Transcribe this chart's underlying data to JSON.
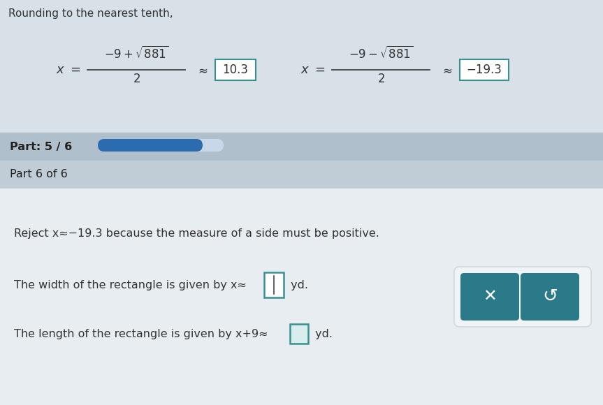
{
  "bg_top_section": "#d8e0e8",
  "bg_part_bar": "#b0bfcc",
  "bg_part6_header": "#c0ccd6",
  "bg_main_content": "#e8edf2",
  "title_text": "Rounding to the nearest tenth,",
  "formula1_approx": "10.3",
  "formula2_approx": "−19.3",
  "part_text": "Part: 5 / 6",
  "part6_text": "Part 6 of 6",
  "reject_text": "Reject x≈−19.3 because the measure of a side must be positive.",
  "width_text_pre": "The width of the rectangle is given by x≈",
  "width_text_post": " yd.",
  "length_text_pre": "The length of the rectangle is given by x+9≈",
  "length_text_post": " yd.",
  "progress_fill_color": "#2b6cb0",
  "progress_bg_color": "#c8d8e8",
  "button_color": "#2a7a8a",
  "button_container_color": "#f0f4f6",
  "button_container_border": "#d0d8e0",
  "box_outline_color": "#3a9090",
  "box_fill_color": "#ffffff",
  "length_box_fill": "#d8eeee",
  "fraction_bar_color": "#444444",
  "text_color": "#333333",
  "formula_text_color": "#333333"
}
